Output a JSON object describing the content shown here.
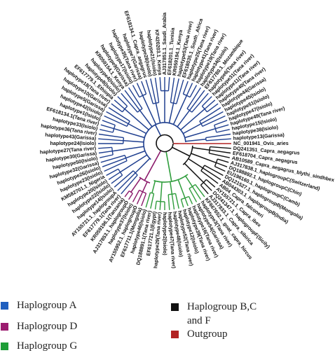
{
  "colors": {
    "haplogroup_a": "#1f3f8f",
    "haplogroup_d": "#8b1a6b",
    "haplogroup_g": "#2f9d3c",
    "haplogroup_bcf": "#111111",
    "outgroup": "#b22222"
  },
  "legend": [
    {
      "label": "Haplogroup A",
      "color": "#1f5fbf"
    },
    {
      "label": "Haplogroup D",
      "color": "#9b1b6f"
    },
    {
      "label": "Haplogroup G",
      "color": "#1e9e38"
    },
    {
      "label": "Haplogroup B,C and F",
      "color": "#111111"
    },
    {
      "label": "Outgroup",
      "color": "#b22222"
    }
  ],
  "tree": {
    "leaves": [
      {
        "label": "NC_001941_Ovis_aries",
        "group": "outgroup"
      },
      {
        "label": "DQ241351_Capra_aegagrus",
        "group": "bcf"
      },
      {
        "label": "EF618704_Capra_aegagrus",
        "group": "bcf"
      },
      {
        "label": "AB10589_Capra_aegagrus_blythi_sindhbex",
        "group": "bcf"
      },
      {
        "label": "AJ317838.1_haplogroupC(Switzerland)",
        "group": "bcf"
      },
      {
        "label": "DQ188892.1_haplogroupC(Chin)",
        "group": "bcf"
      },
      {
        "label": "EU196160.1_haplogroupC(Camb)",
        "group": "bcf"
      },
      {
        "label": "DQ121527.1_haplogroupB(Mongolia)",
        "group": "bcf"
      },
      {
        "label": "AB044303.1_haplogroupB(India)",
        "group": "bcf"
      },
      {
        "label": "AB04_Capra_falconeri",
        "group": "bcf"
      },
      {
        "label": "AY155721.1_Capra_ibex",
        "group": "bcf"
      },
      {
        "label": "DQ241347.1_haplogroupF(Sicily)",
        "group": "bcf"
      },
      {
        "label": "AJ317833.1_Capra_sibirica",
        "group": "bcf"
      },
      {
        "label": "KF667652.1_goat_capra_hircus",
        "group": "g"
      },
      {
        "label": "haplotype3(Tana river)",
        "group": "g"
      },
      {
        "label": "haplotype54(Garissa)",
        "group": "g"
      },
      {
        "label": "haplotype16(Tana river)",
        "group": "g"
      },
      {
        "label": "haplotype39(Tana river)",
        "group": "g"
      },
      {
        "label": "haplotype12(Isiolo)",
        "group": "g"
      },
      {
        "label": "haplotype52(Tana river)",
        "group": "g"
      },
      {
        "label": "haplotype48(Isiolo)",
        "group": "g"
      },
      {
        "label": "haplotype47(Tana river)",
        "group": "g"
      },
      {
        "label": "haplotype2(Isiolo)",
        "group": "g"
      },
      {
        "label": "haplotype29(Tana river)",
        "group": "g"
      },
      {
        "label": "EF617721.1(Egypt)",
        "group": "g"
      },
      {
        "label": "DQ188891.1(Tana river)",
        "group": "g"
      },
      {
        "label": "haplotype46(Isiolo)",
        "group": "g"
      },
      {
        "label": "EF617711.1(Mongolia)",
        "group": "d"
      },
      {
        "label": "AY155952.1_haplogroupD",
        "group": "d"
      },
      {
        "label": "haplotype37(Isiolo)",
        "group": "d"
      },
      {
        "label": "AJ317853.1_haplogroupD",
        "group": "d"
      },
      {
        "label": "KR059196.1(Tanzania)",
        "group": "d"
      },
      {
        "label": "EF617779.1(Tana river)",
        "group": "a"
      },
      {
        "label": "AY155721.1_haplogroupA",
        "group": "a"
      },
      {
        "label": "haplotype14(Isiolo)",
        "group": "a"
      },
      {
        "label": "haplotype22(Isiolo)",
        "group": "a"
      },
      {
        "label": "haplotype20(Isiolo)",
        "group": "a"
      },
      {
        "label": "KM582701.1_Nigeria",
        "group": "a"
      },
      {
        "label": "haplotype23(Isiolo)",
        "group": "a"
      },
      {
        "label": "haplotype26(Isiolo)",
        "group": "a"
      },
      {
        "label": "haplotype32(Garissa)",
        "group": "a"
      },
      {
        "label": "haplotype50(Isiolo)",
        "group": "a"
      },
      {
        "label": "haplotype30(Garissa)",
        "group": "a"
      },
      {
        "label": "haplotype27(Tana river)",
        "group": "a"
      },
      {
        "label": "haplotype24(Isiolo)",
        "group": "a"
      },
      {
        "label": "haplotype43(Garissa)",
        "group": "a"
      },
      {
        "label": "haplotype36(Tana river)",
        "group": "a"
      },
      {
        "label": "haplotype33(Isiolo)",
        "group": "a"
      },
      {
        "label": "EF618134.1(Tana river)",
        "group": "a"
      },
      {
        "label": "haplotype1(Isiolo)",
        "group": "a"
      },
      {
        "label": "haplotype42(Isiolo)",
        "group": "a"
      },
      {
        "label": "haplotype5(Garissa)",
        "group": "a"
      },
      {
        "label": "haplotype10(Garissa)",
        "group": "a"
      },
      {
        "label": "haplotype18(Tana river)",
        "group": "a"
      },
      {
        "label": "EF617779.1_Ethiopia",
        "group": "a"
      },
      {
        "label": "haplotype8(Isiolo)",
        "group": "a"
      },
      {
        "label": "haplotype4(Isiolo)",
        "group": "a"
      },
      {
        "label": "KR059154.1_Kenya",
        "group": "a"
      },
      {
        "label": "haplotype9(Garissa)",
        "group": "a"
      },
      {
        "label": "haplotype17(Isiolo)",
        "group": "a"
      },
      {
        "label": "haplotype35(Tana river)",
        "group": "a"
      },
      {
        "label": "haplotype7(Garissa)",
        "group": "a"
      },
      {
        "label": "EF618134.1_Capra_aegagrus",
        "group": "a"
      },
      {
        "label": "haplotype28(Isiolo)",
        "group": "a"
      },
      {
        "label": "haplotype21(Isiolo)",
        "group": "a"
      },
      {
        "label": "KF420203.1_Kenya",
        "group": "a"
      },
      {
        "label": "AJ317851.1_Saudi_Arabia",
        "group": "a"
      },
      {
        "label": "EF618201.1_Tunisia",
        "group": "a"
      },
      {
        "label": "KR059194.1_Kenya",
        "group": "a"
      },
      {
        "label": "haplotype53(Tana river)",
        "group": "a"
      },
      {
        "label": "EF618035.1_South_Africa",
        "group": "a"
      },
      {
        "label": "haplotype25(Tana river)",
        "group": "a"
      },
      {
        "label": "haplotype41(Tana river)",
        "group": "a"
      },
      {
        "label": "haplotype19(Tana river)",
        "group": "a"
      },
      {
        "label": "haplotype34(Isiolo)",
        "group": "a"
      },
      {
        "label": "EF617780.1_Mozambique",
        "group": "a"
      },
      {
        "label": "haplotype6(Tana river)",
        "group": "a"
      },
      {
        "label": "haplotype31(Tana river)",
        "group": "a"
      },
      {
        "label": "haplotype11(Tana river)",
        "group": "a"
      },
      {
        "label": "haplotype40(Tana river)",
        "group": "a"
      },
      {
        "label": "haplotype44(Garissa)",
        "group": "a"
      },
      {
        "label": "haplotype45(Isiolo)",
        "group": "a"
      },
      {
        "label": "haplotype51(Isiolo)",
        "group": "a"
      },
      {
        "label": "haplotype47(Isiolo)",
        "group": "a"
      },
      {
        "label": "haplotype49(Tana river)",
        "group": "a"
      },
      {
        "label": "haplotype15(Isiolo)",
        "group": "a"
      },
      {
        "label": "haplotype38(Isiolo)",
        "group": "a"
      },
      {
        "label": "haplotype13(Garissa)",
        "group": "a"
      }
    ]
  }
}
